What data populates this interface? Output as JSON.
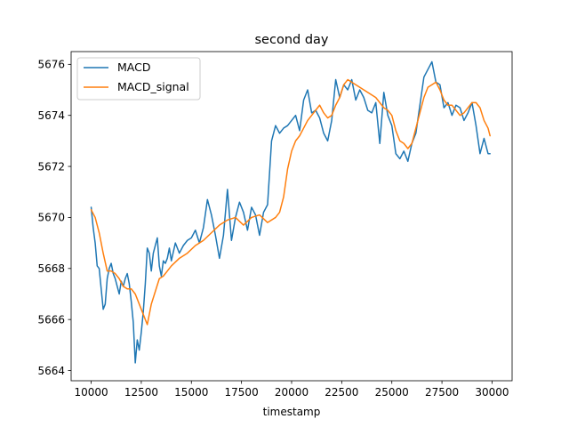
{
  "chart_data": {
    "type": "line",
    "title": "second day",
    "xlabel": "timestamp",
    "ylabel": "",
    "xlim": [
      9000,
      31000
    ],
    "ylim": [
      5663.6,
      5676.5
    ],
    "xticks": [
      10000,
      12500,
      15000,
      17500,
      20000,
      22500,
      25000,
      27500,
      30000
    ],
    "yticks": [
      5664,
      5666,
      5668,
      5670,
      5672,
      5674,
      5676
    ],
    "grid": false,
    "legend_position": "upper-left",
    "series": [
      {
        "name": "MACD",
        "color": "#1f77b4",
        "x": [
          10000,
          10100,
          10200,
          10300,
          10400,
          10500,
          10600,
          10700,
          10800,
          10900,
          11000,
          11100,
          11200,
          11300,
          11400,
          11500,
          11600,
          11700,
          11800,
          11900,
          12000,
          12100,
          12200,
          12300,
          12400,
          12500,
          12600,
          12700,
          12800,
          12900,
          13000,
          13100,
          13200,
          13300,
          13400,
          13500,
          13600,
          13700,
          13800,
          13900,
          14000,
          14200,
          14400,
          14600,
          14800,
          15000,
          15200,
          15400,
          15600,
          15800,
          16000,
          16200,
          16400,
          16600,
          16800,
          17000,
          17200,
          17400,
          17600,
          17800,
          18000,
          18200,
          18400,
          18600,
          18800,
          19000,
          19200,
          19400,
          19600,
          19800,
          20000,
          20200,
          20400,
          20600,
          20800,
          21000,
          21200,
          21400,
          21600,
          21800,
          22000,
          22200,
          22400,
          22600,
          22800,
          23000,
          23200,
          23400,
          23600,
          23800,
          24000,
          24200,
          24400,
          24600,
          24800,
          25000,
          25200,
          25400,
          25600,
          25800,
          26000,
          26200,
          26400,
          26600,
          26800,
          27000,
          27200,
          27400,
          27600,
          27800,
          28000,
          28200,
          28400,
          28600,
          28800,
          29000,
          29200,
          29400,
          29600,
          29800,
          29900
        ],
        "values": [
          5670.4,
          5669.6,
          5669.0,
          5668.1,
          5668.0,
          5667.2,
          5666.4,
          5666.6,
          5667.6,
          5668.0,
          5668.2,
          5667.8,
          5667.6,
          5667.3,
          5667.0,
          5667.5,
          5667.3,
          5667.6,
          5667.8,
          5667.4,
          5666.7,
          5665.9,
          5664.3,
          5665.2,
          5664.8,
          5665.5,
          5666.3,
          5667.4,
          5668.8,
          5668.6,
          5667.9,
          5668.6,
          5668.9,
          5669.2,
          5668.1,
          5667.7,
          5668.3,
          5668.2,
          5668.4,
          5668.8,
          5668.3,
          5669.0,
          5668.6,
          5668.9,
          5669.1,
          5669.2,
          5669.5,
          5669.0,
          5669.6,
          5670.7,
          5670.1,
          5669.3,
          5668.4,
          5669.3,
          5671.1,
          5669.1,
          5670.0,
          5670.6,
          5670.2,
          5669.5,
          5670.4,
          5670.1,
          5669.3,
          5670.2,
          5670.5,
          5673.0,
          5673.6,
          5673.3,
          5673.5,
          5673.6,
          5673.8,
          5674.0,
          5673.4,
          5674.6,
          5675.0,
          5674.1,
          5674.2,
          5673.9,
          5673.3,
          5673.0,
          5673.8,
          5675.4,
          5674.7,
          5675.2,
          5675.0,
          5675.4,
          5674.6,
          5675.0,
          5674.7,
          5674.2,
          5674.1,
          5674.5,
          5672.9,
          5674.9,
          5674.0,
          5673.6,
          5672.5,
          5672.3,
          5672.6,
          5672.2,
          5672.9,
          5673.3,
          5674.4,
          5675.5,
          5675.8,
          5676.1,
          5675.3,
          5675.2,
          5674.3,
          5674.5,
          5674.0,
          5674.4,
          5674.3,
          5673.8,
          5674.1,
          5674.5,
          5673.6,
          5672.5,
          5673.1,
          5672.5,
          5672.5
        ]
      },
      {
        "name": "MACD_signal",
        "color": "#ff7f0e",
        "x": [
          10000,
          10200,
          10400,
          10600,
          10800,
          11000,
          11200,
          11400,
          11600,
          11800,
          12000,
          12200,
          12400,
          12600,
          12800,
          13000,
          13200,
          13400,
          13600,
          13800,
          14000,
          14400,
          14800,
          15200,
          15600,
          16000,
          16400,
          16800,
          17200,
          17600,
          18000,
          18400,
          18800,
          19200,
          19400,
          19600,
          19800,
          20000,
          20200,
          20400,
          20600,
          20800,
          21000,
          21200,
          21400,
          21600,
          21800,
          22000,
          22200,
          22400,
          22600,
          22800,
          23000,
          23200,
          23400,
          23600,
          23800,
          24000,
          24200,
          24400,
          24600,
          24800,
          25000,
          25200,
          25400,
          25600,
          25800,
          26000,
          26200,
          26400,
          26600,
          26800,
          27000,
          27200,
          27400,
          27600,
          27800,
          28000,
          28200,
          28400,
          28600,
          28800,
          29000,
          29200,
          29400,
          29600,
          29800,
          29900
        ],
        "values": [
          5670.3,
          5670.0,
          5669.4,
          5668.6,
          5667.9,
          5667.9,
          5667.8,
          5667.6,
          5667.3,
          5667.2,
          5667.2,
          5667.0,
          5666.6,
          5666.2,
          5665.8,
          5666.6,
          5667.1,
          5667.6,
          5667.7,
          5667.9,
          5668.1,
          5668.4,
          5668.6,
          5668.9,
          5669.1,
          5669.4,
          5669.7,
          5669.9,
          5670.0,
          5669.7,
          5670.0,
          5670.1,
          5669.8,
          5670.0,
          5670.2,
          5670.8,
          5671.9,
          5672.6,
          5673.0,
          5673.2,
          5673.5,
          5673.8,
          5674.0,
          5674.2,
          5674.4,
          5674.1,
          5673.9,
          5674.0,
          5674.4,
          5674.7,
          5675.2,
          5675.4,
          5675.3,
          5675.2,
          5675.1,
          5675.0,
          5674.9,
          5674.8,
          5674.7,
          5674.5,
          5674.3,
          5674.2,
          5674.0,
          5673.4,
          5673.0,
          5672.9,
          5672.7,
          5672.9,
          5673.5,
          5674.1,
          5674.7,
          5675.1,
          5675.2,
          5675.3,
          5675.0,
          5674.6,
          5674.4,
          5674.4,
          5674.2,
          5674.0,
          5674.1,
          5674.3,
          5674.5,
          5674.5,
          5674.3,
          5673.8,
          5673.5,
          5673.2
        ]
      }
    ]
  }
}
